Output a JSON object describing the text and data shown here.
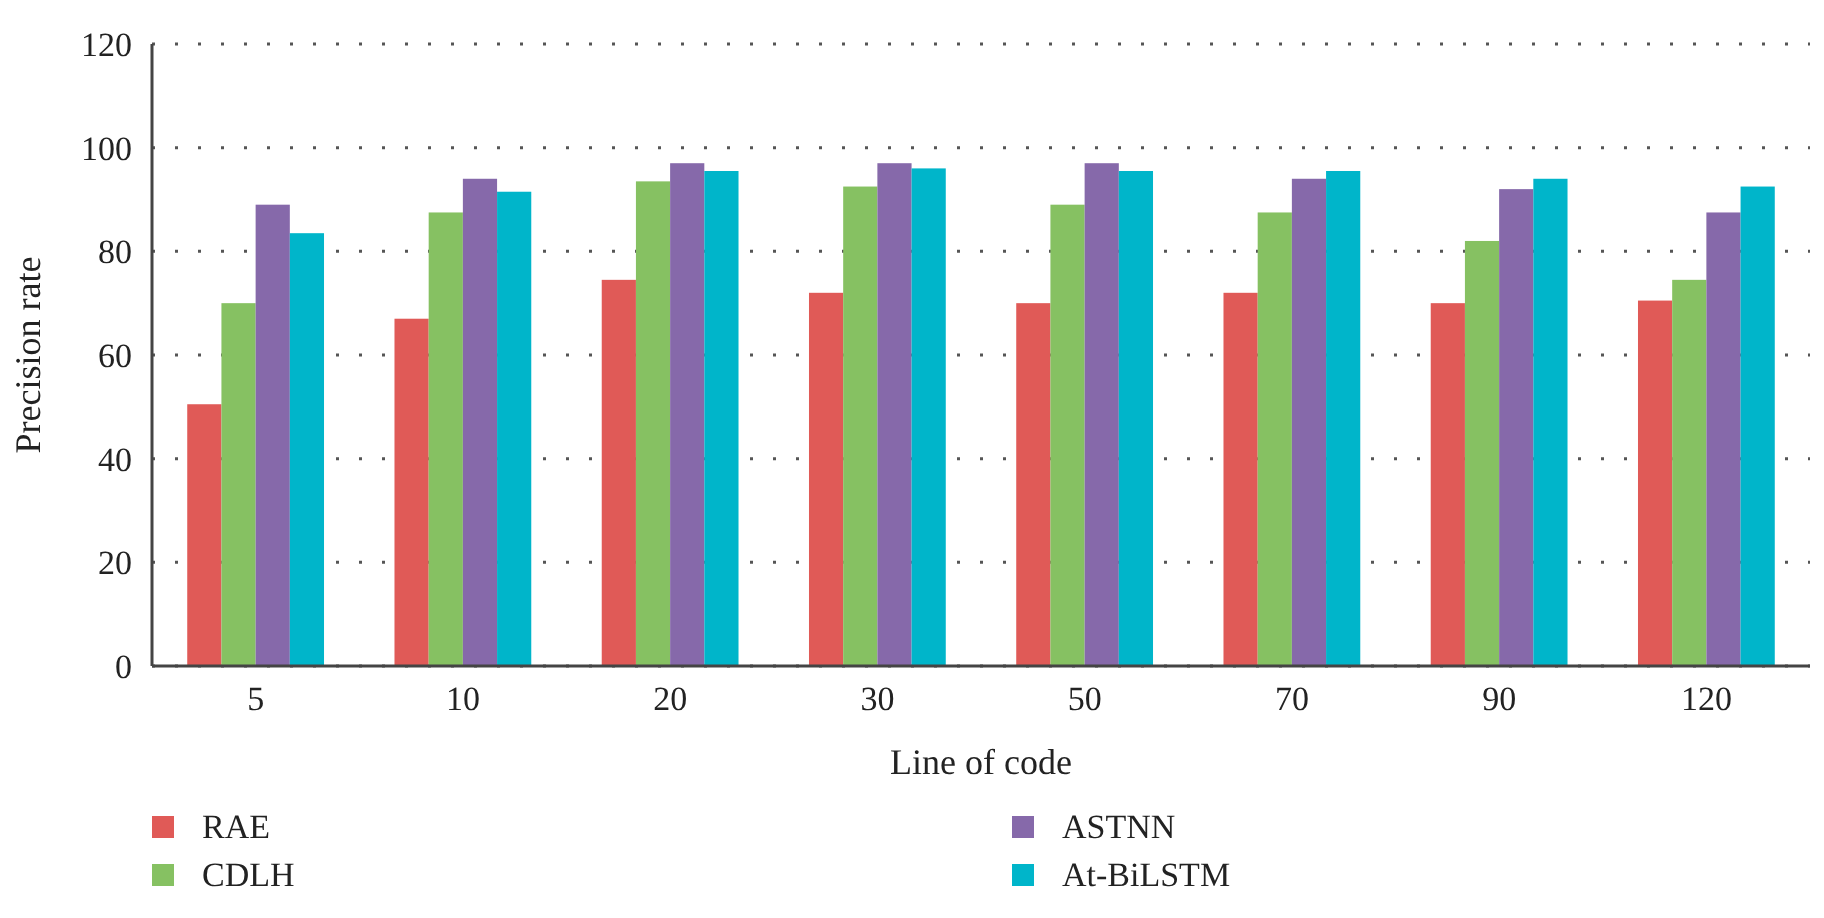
{
  "chart_data": {
    "type": "bar",
    "xlabel": "Line of code",
    "ylabel": "Precision rate",
    "categories": [
      "5",
      "10",
      "20",
      "30",
      "50",
      "70",
      "90",
      "120"
    ],
    "series": [
      {
        "name": "RAE",
        "color": "#e05a57",
        "values": [
          50.5,
          67,
          74.5,
          72,
          70,
          72,
          70,
          70.5
        ]
      },
      {
        "name": "CDLH",
        "color": "#86c162",
        "values": [
          70,
          87.5,
          93.5,
          92.5,
          89,
          87.5,
          82,
          74.5
        ]
      },
      {
        "name": "ASTNN",
        "color": "#8669aa",
        "values": [
          89,
          94,
          97,
          97,
          97,
          94,
          92,
          87.5
        ]
      },
      {
        "name": "At-BiLSTM",
        "color": "#00b5ca",
        "values": [
          83.5,
          91.5,
          95.5,
          96,
          95.5,
          95.5,
          94,
          92.5
        ]
      }
    ],
    "ylim": [
      0,
      120
    ],
    "yticks": [
      0,
      20,
      40,
      60,
      80,
      100,
      120
    ],
    "grid": "y",
    "legend": "bottom"
  }
}
